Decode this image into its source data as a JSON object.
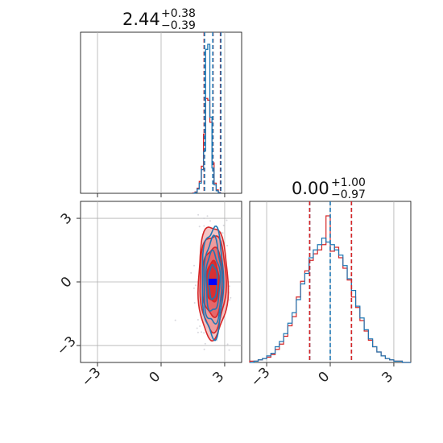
{
  "chart_data": {
    "type": "corner",
    "colors": {
      "blue": "#1f77b4",
      "red": "#d62728",
      "red_fill": "#e9888a",
      "grid": "#b0b0b0",
      "median_marker": "#0000ff"
    },
    "grid": true,
    "parameters": [
      {
        "title_value": "2.44",
        "title_plus": "+0.38",
        "title_minus": "−0.39",
        "median": 2.44,
        "low": 2.05,
        "high": 2.82
      },
      {
        "title_value": "0.00",
        "title_plus": "+1.00",
        "title_minus": "−0.97",
        "median": 0.0,
        "low": -0.97,
        "high": 1.0
      }
    ],
    "x_ticks": [
      {
        "value": -3,
        "label": "−3"
      },
      {
        "value": 0,
        "label": "0"
      },
      {
        "value": 3,
        "label": "3"
      }
    ],
    "y_ticks": [
      {
        "value": 3,
        "label": "3"
      },
      {
        "value": 0,
        "label": "0"
      },
      {
        "value": -3,
        "label": "−3"
      }
    ],
    "marginal_1": {
      "bins_start": 1.5,
      "bin_width": 0.1,
      "red_counts": [
        0.02,
        0.08,
        0.3,
        0.7,
        1.6,
        3.5,
        5.6,
        5.5,
        4.2,
        1.8,
        0.6,
        0.2,
        0.05
      ],
      "blue_counts": [
        0.0,
        0.06,
        0.25,
        0.6,
        1.4,
        2.5,
        8.5,
        8.8,
        4.5,
        1.5,
        0.5,
        0.15,
        0.03
      ],
      "blue_dashed": [
        2.05,
        2.44,
        2.82
      ],
      "red_dashed": [
        2.03,
        2.45,
        2.8
      ]
    },
    "marginal_2": {
      "bins_start": -3.8,
      "bin_width": 0.2,
      "red_counts": [
        0.01,
        0.01,
        0.02,
        0.03,
        0.04,
        0.06,
        0.1,
        0.14,
        0.2,
        0.28,
        0.35,
        0.5,
        0.62,
        0.7,
        0.78,
        0.83,
        0.86,
        0.9,
        1.12,
        0.85,
        0.88,
        0.8,
        0.72,
        0.63,
        0.5,
        0.42,
        0.32,
        0.24,
        0.17,
        0.12,
        0.08,
        0.05,
        0.03,
        0.02,
        0.01,
        0.01,
        0.0,
        0.0
      ],
      "blue_counts": [
        0.0,
        0.01,
        0.02,
        0.03,
        0.05,
        0.07,
        0.12,
        0.16,
        0.22,
        0.3,
        0.38,
        0.48,
        0.6,
        0.68,
        0.8,
        0.86,
        0.9,
        0.95,
        0.92,
        0.9,
        0.86,
        0.82,
        0.74,
        0.64,
        0.55,
        0.43,
        0.34,
        0.25,
        0.18,
        0.12,
        0.08,
        0.05,
        0.03,
        0.02,
        0.01,
        0.01,
        0.0,
        0.0
      ],
      "blue_dashed": [
        -0.97,
        0.0,
        1.0
      ],
      "red_dashed": [
        -0.97,
        1.0
      ]
    },
    "joint": {
      "center": [
        2.44,
        0.0
      ],
      "red_contours": [
        {
          "sx": 0.7,
          "sy": 2.65
        },
        {
          "sx": 0.62,
          "sy": 2.25
        },
        {
          "sx": 0.5,
          "sy": 1.6
        },
        {
          "sx": 0.3,
          "sy": 0.95
        }
      ],
      "blue_contours": [
        {
          "sx": 0.5,
          "sy": 2.55
        },
        {
          "sx": 0.42,
          "sy": 2.0
        },
        {
          "sx": 0.33,
          "sy": 1.4
        },
        {
          "sx": 0.2,
          "sy": 0.8
        }
      ]
    }
  }
}
